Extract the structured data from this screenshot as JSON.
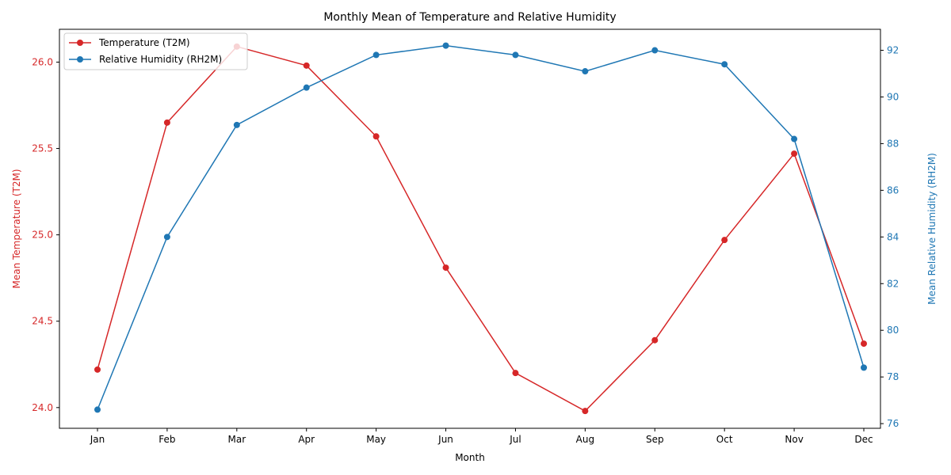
{
  "chart_data": {
    "type": "line",
    "title": "Monthly Mean of Temperature and Relative Humidity",
    "xlabel": "Month",
    "categories": [
      "Jan",
      "Feb",
      "Mar",
      "Apr",
      "May",
      "Jun",
      "Jul",
      "Aug",
      "Sep",
      "Oct",
      "Nov",
      "Dec"
    ],
    "y_left": {
      "label": "Mean Temperature (T2M)",
      "ylim": [
        23.88,
        26.19
      ],
      "ticks": [
        "24.0",
        "24.5",
        "25.0",
        "25.5",
        "26.0"
      ],
      "color": "#d62728"
    },
    "y_right": {
      "label": "Mean Relative Humidity (RH2M)",
      "ylim": [
        75.8,
        92.9
      ],
      "ticks": [
        "76",
        "78",
        "80",
        "82",
        "84",
        "86",
        "88",
        "90",
        "92"
      ],
      "color": "#1f77b4"
    },
    "series": [
      {
        "name": "Temperature (T2M)",
        "axis": "left",
        "color": "#d62728",
        "values": [
          24.22,
          25.65,
          26.09,
          25.98,
          25.57,
          24.81,
          24.2,
          23.98,
          24.39,
          24.97,
          25.47,
          24.37
        ]
      },
      {
        "name": "Relative Humidity (RH2M)",
        "axis": "right",
        "color": "#1f77b4",
        "values": [
          76.6,
          84.0,
          88.8,
          90.4,
          91.8,
          92.2,
          91.8,
          91.1,
          92.0,
          91.4,
          88.2,
          78.4
        ]
      }
    ],
    "legend_position": "top-left",
    "grid": false
  }
}
